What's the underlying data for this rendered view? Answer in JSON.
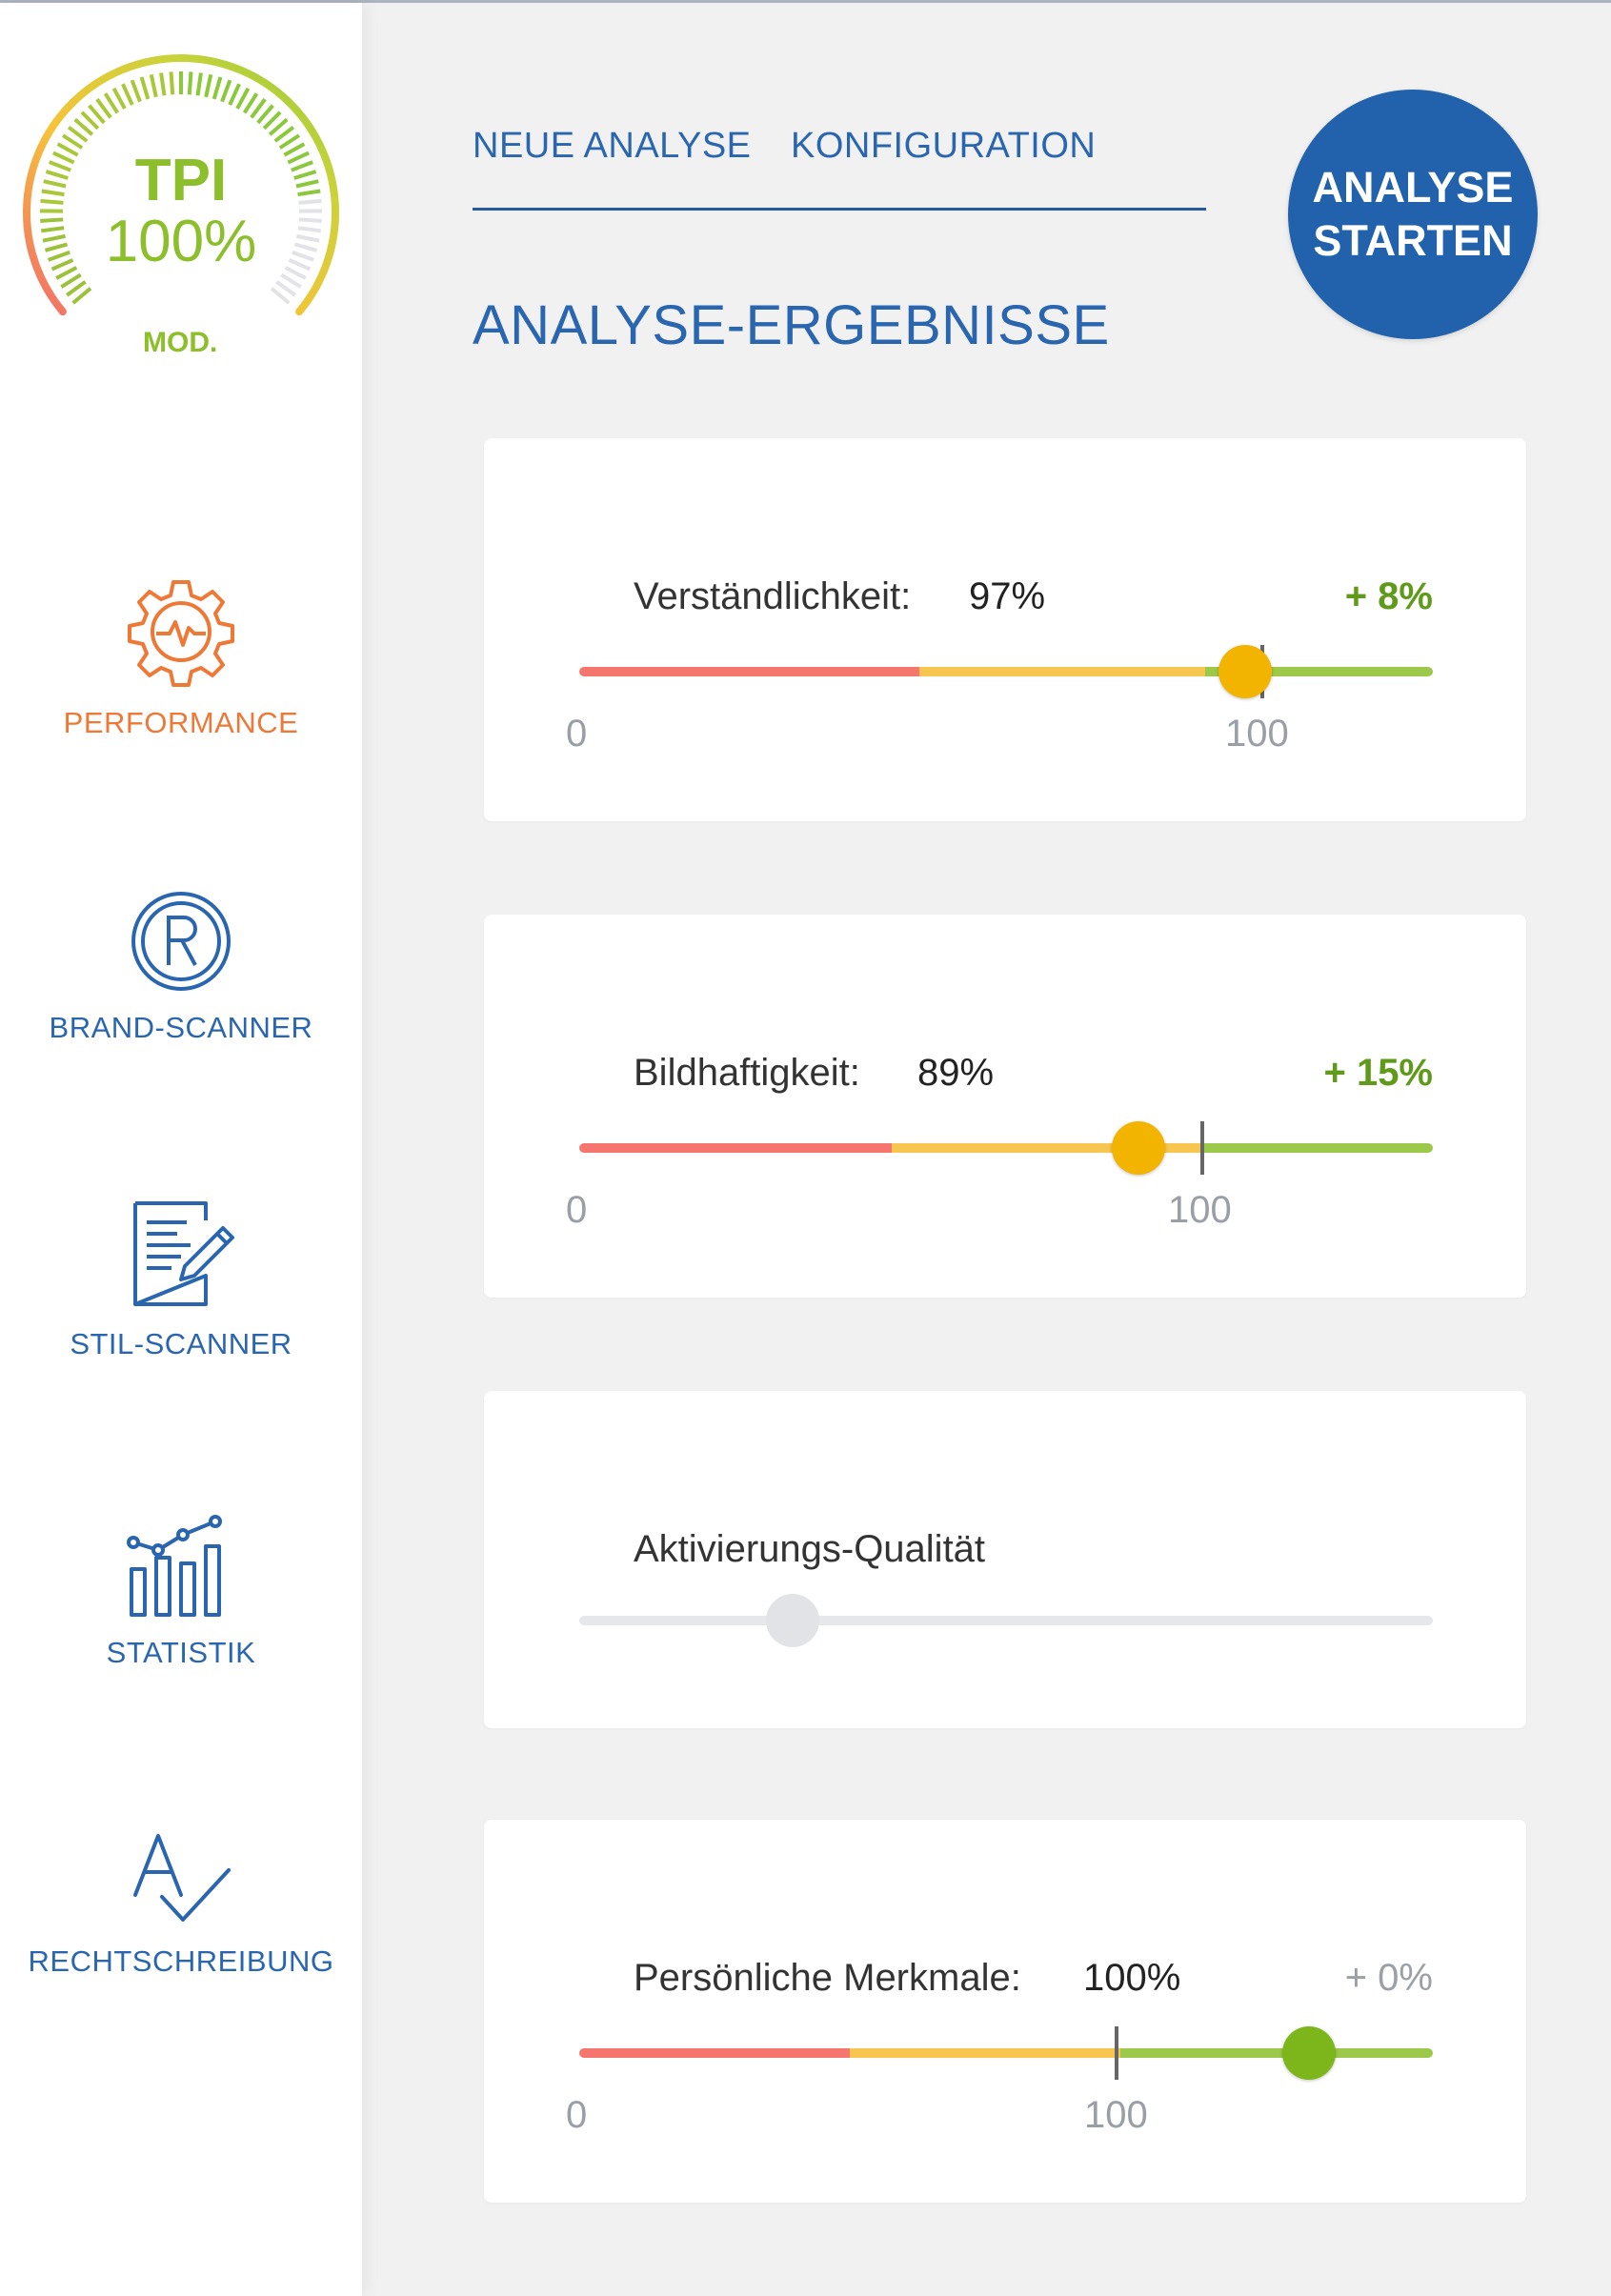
{
  "gauge": {
    "title": "TPI",
    "value": "100%",
    "mode": "MOD.",
    "level": 1.0,
    "colors": {
      "low": "#f26b6b",
      "mid": "#f6c339",
      "high": "#8cc83c"
    }
  },
  "sidebar": {
    "items": [
      {
        "label": "PERFORMANCE",
        "icon": "gear-pulse-icon",
        "color": "#ee7936"
      },
      {
        "label": "BRAND-SCANNER",
        "icon": "registered-icon",
        "color": "#2a66b0"
      },
      {
        "label": "STIL-SCANNER",
        "icon": "document-pen-icon",
        "color": "#2a66b0"
      },
      {
        "label": "STATISTIK",
        "icon": "bar-chart-icon",
        "color": "#2a66b0"
      },
      {
        "label": "RECHTSCHREIBUNG",
        "icon": "spellcheck-icon",
        "color": "#2a66b0"
      }
    ]
  },
  "tabs": [
    {
      "label": "NEUE ANALYSE"
    },
    {
      "label": "KONFIGURATION"
    }
  ],
  "start_button": {
    "line1": "ANALYSE",
    "line2": "STARTEN"
  },
  "section_title": "ANALYSE-ERGEBNISSE",
  "metrics": [
    {
      "label": "Verständlichkeit:",
      "value": "97%",
      "delta": "+ 8%",
      "delta_color": "#5f9a1a",
      "axis_min": "0",
      "axis_max": "100",
      "knob_color": "#f3b400",
      "reference_fraction": 0.8,
      "knob_fraction": 0.78
    },
    {
      "label": "Bildhaftigkeit:",
      "value": "89%",
      "delta": "+ 15%",
      "delta_color": "#5f9a1a",
      "axis_min": "0",
      "axis_max": "100",
      "knob_color": "#f3b400",
      "reference_fraction": 0.73,
      "knob_fraction": 0.655
    },
    {
      "label": "Aktivierungs-Qualität",
      "value": "",
      "delta": "",
      "delta_color": "#9aa0a6",
      "axis_min": "",
      "axis_max": "",
      "knob_color": "#e2e3e7",
      "reference_fraction": null,
      "knob_fraction": 0.25
    },
    {
      "label": "Persönliche Merkmale:",
      "value": "100%",
      "delta": "+ 0%",
      "delta_color": "#9aa0a6",
      "axis_min": "0",
      "axis_max": "100",
      "knob_color": "#7db61a",
      "reference_fraction": 0.63,
      "knob_fraction": 0.855
    }
  ]
}
